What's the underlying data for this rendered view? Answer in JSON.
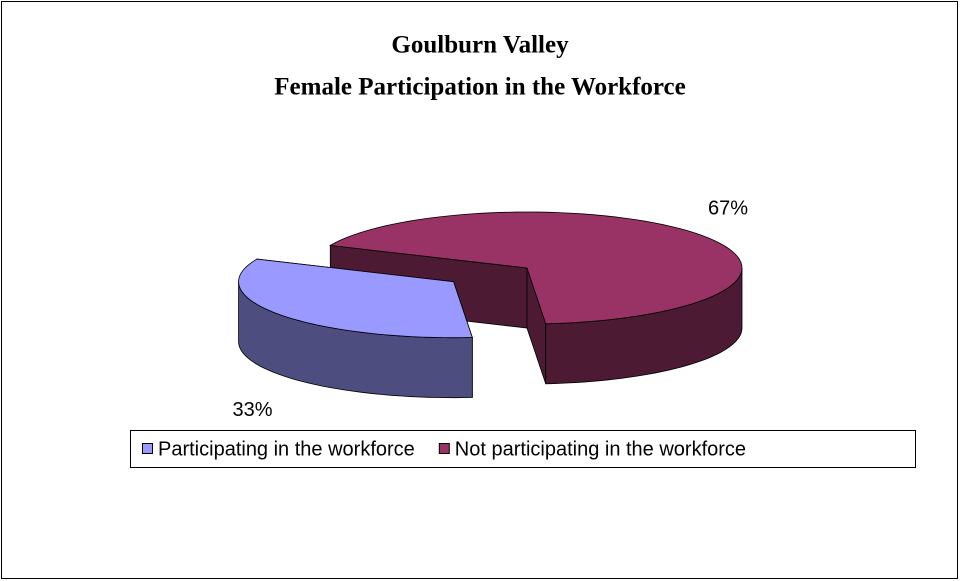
{
  "chart_data": {
    "type": "pie3d",
    "title": [
      "Goulburn Valley",
      "Female Participation in the Workforce"
    ],
    "categories": [
      "Participating in the workforce",
      "Not participating in the workforce"
    ],
    "values": [
      33,
      67
    ],
    "value_labels": [
      "33%",
      "67%"
    ],
    "colors": [
      "#9999ff",
      "#993366"
    ],
    "legend": "bottom"
  }
}
